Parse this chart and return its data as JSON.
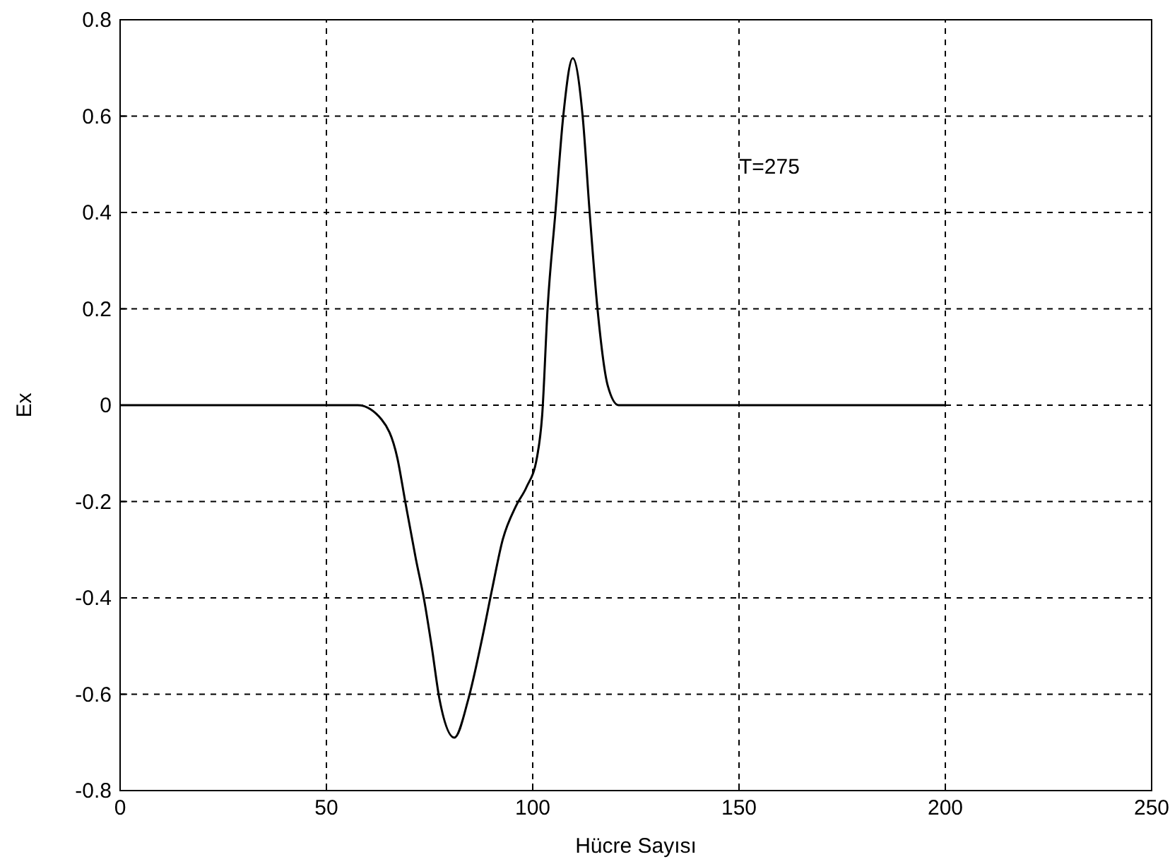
{
  "chart_data": {
    "type": "line",
    "xlabel": "Hücre Sayısı",
    "ylabel": "Ex",
    "annotations": [
      "T=275"
    ],
    "xlim": [
      0,
      250
    ],
    "xticks": [
      0,
      50,
      100,
      150,
      200,
      250
    ],
    "ylim": [
      -0.8,
      0.8
    ],
    "yticks": [
      -0.8,
      -0.6,
      -0.4,
      -0.2,
      0,
      0.2,
      0.4,
      0.6,
      0.8
    ],
    "grid": true,
    "series": [
      {
        "color": "#000000",
        "x": [
          0,
          20,
          40,
          57.6,
          63.4,
          67.2,
          69.1,
          71.7,
          73.6,
          75.5,
          77.4,
          81,
          84.4,
          87.6,
          90.2,
          92.7,
          95.9,
          98.5,
          101,
          102.3,
          103.6,
          105.5,
          107.4,
          109.7,
          112.1,
          113.8,
          115.7,
          118.2,
          120.8,
          150,
          200
        ],
        "values": [
          0,
          0,
          0,
          0,
          -0.03,
          -0.11,
          -0.2,
          -0.32,
          -0.4,
          -0.5,
          -0.61,
          -0.69,
          -0.61,
          -0.49,
          -0.38,
          -0.28,
          -0.21,
          -0.17,
          -0.11,
          -0.02,
          0.2,
          0.4,
          0.6,
          0.72,
          0.6,
          0.4,
          0.2,
          0.04,
          0,
          0,
          0
        ]
      }
    ]
  }
}
